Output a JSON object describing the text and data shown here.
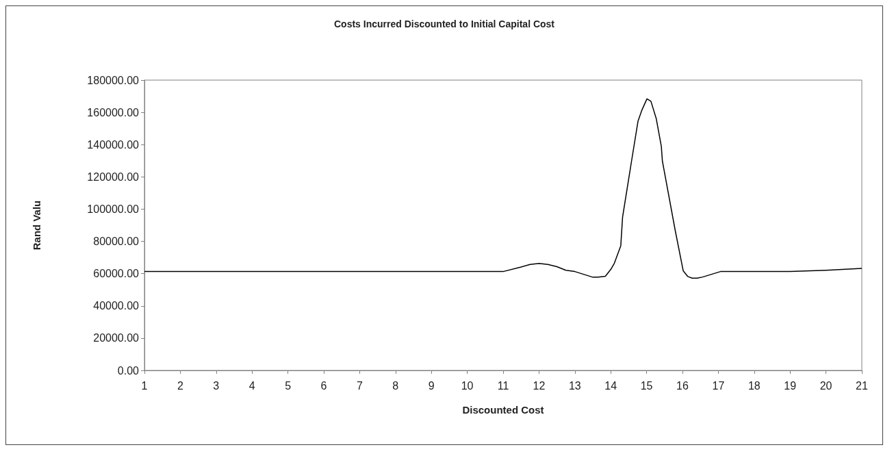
{
  "chart_data": {
    "type": "line",
    "title": "Costs Incurred Discounted to Initial Capital Cost",
    "xlabel": "Discounted Cost",
    "ylabel": "Rand Valu",
    "x": [
      1,
      2,
      3,
      4,
      5,
      6,
      7,
      8,
      9,
      10,
      11,
      11.5,
      11.75,
      12,
      12.25,
      12.5,
      12.75,
      13,
      13.5,
      13.65,
      13.85,
      14,
      14.1,
      14.28,
      14.33,
      14.58,
      14.76,
      14.87,
      15.01,
      15.12,
      15.27,
      15.41,
      15.44,
      15.8,
      16.02,
      16.15,
      16.27,
      16.41,
      16.56,
      17.06,
      18,
      19,
      20,
      21
    ],
    "series": [
      {
        "color": "#000000",
        "values": [
          61300,
          61300,
          61300,
          61300,
          61300,
          61300,
          61300,
          61300,
          61300,
          61300,
          61300,
          64100,
          65700,
          66300,
          65700,
          64300,
          62100,
          61300,
          57800,
          57800,
          58400,
          62600,
          66400,
          77300,
          95000,
          129800,
          154500,
          161500,
          168400,
          166900,
          156000,
          139000,
          129800,
          86500,
          61800,
          58200,
          57200,
          57200,
          57900,
          61300,
          61300,
          61300,
          62100,
          63300
        ]
      }
    ],
    "xlim": [
      1,
      21
    ],
    "xticks": [
      1,
      2,
      3,
      4,
      5,
      6,
      7,
      8,
      9,
      10,
      11,
      12,
      13,
      14,
      15,
      16,
      17,
      18,
      19,
      20,
      21
    ],
    "ylim": [
      0,
      180000
    ],
    "yticks": [
      {
        "value": 0,
        "label": "0.00"
      },
      {
        "value": 20000,
        "label": "20000.00"
      },
      {
        "value": 40000,
        "label": "40000.00"
      },
      {
        "value": 60000,
        "label": "60000.00"
      },
      {
        "value": 80000,
        "label": "80000.00"
      },
      {
        "value": 100000,
        "label": "100000.00"
      },
      {
        "value": 120000,
        "label": "120000.00"
      },
      {
        "value": 140000,
        "label": "140000.00"
      },
      {
        "value": 160000,
        "label": "160000.00"
      },
      {
        "value": 180000,
        "label": "180000.00"
      }
    ],
    "grid": false,
    "marker": "none",
    "line_style": "solid"
  }
}
